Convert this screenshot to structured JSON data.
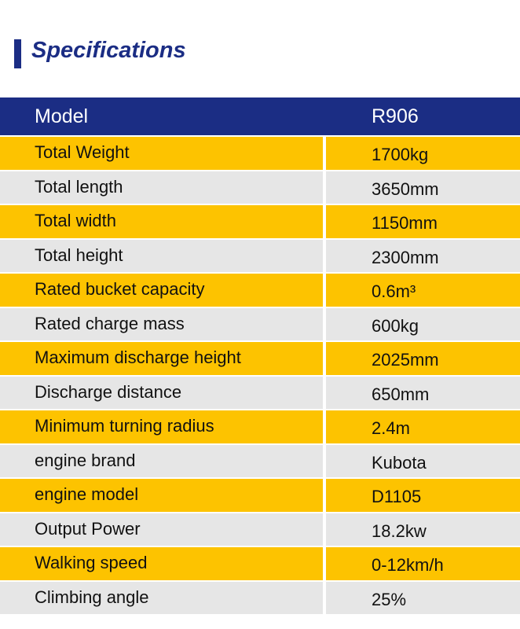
{
  "title": "Specifications",
  "colors": {
    "navy": "#1b2d84",
    "yellow": "#fdc300",
    "gray": "#e6e6e6"
  },
  "header": {
    "label": "Model",
    "value": "R906"
  },
  "rows": [
    {
      "label": "Total Weight",
      "value": "1700kg"
    },
    {
      "label": "Total length",
      "value": "3650mm"
    },
    {
      "label": "Total width",
      "value": "1150mm"
    },
    {
      "label": "Total height",
      "value": "2300mm"
    },
    {
      "label": "Rated bucket capacity",
      "value": "0.6m³"
    },
    {
      "label": "Rated charge mass",
      "value": "600kg"
    },
    {
      "label": "Maximum discharge height",
      "value": "2025mm"
    },
    {
      "label": "Discharge distance",
      "value": "650mm"
    },
    {
      "label": "Minimum turning radius",
      "value": "2.4m"
    },
    {
      "label": "engine brand",
      "value": "Kubota"
    },
    {
      "label": "engine model",
      "value": "D1105"
    },
    {
      "label": "Output Power",
      "value": "18.2kw"
    },
    {
      "label": "Walking speed",
      "value": "0-12km/h"
    },
    {
      "label": "Climbing angle",
      "value": "25%"
    }
  ]
}
